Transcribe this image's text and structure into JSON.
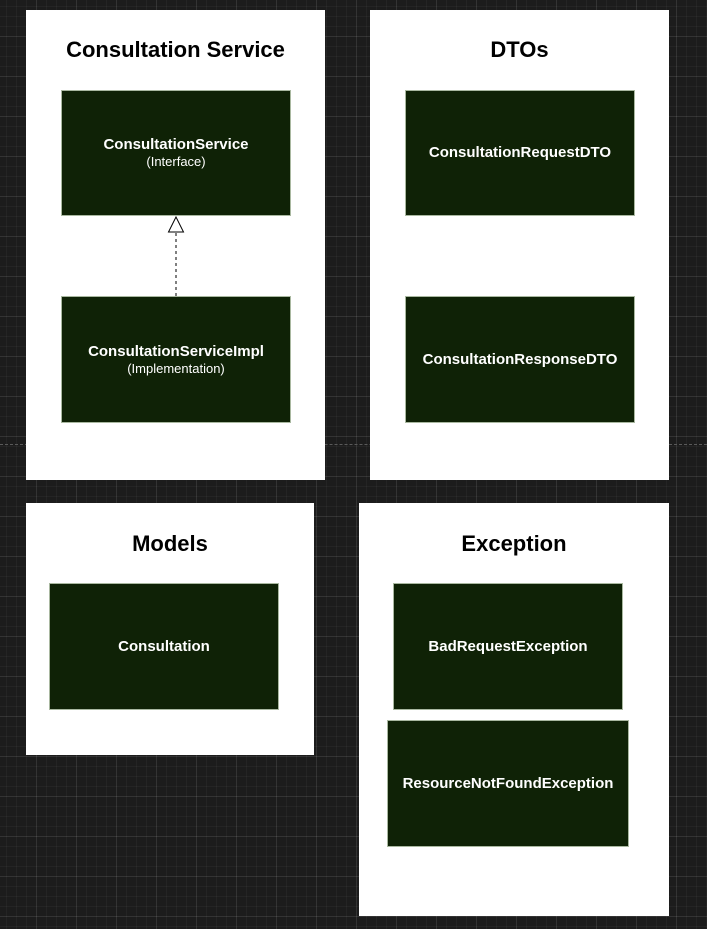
{
  "colors": {
    "canvas": "#1c1c1c",
    "panel": "#ffffff",
    "class_fill": "#0f2206",
    "class_border": "#a9b8a0",
    "class_text": "#ffffff",
    "relation_line": "#000000"
  },
  "panels": {
    "consultation_service": {
      "title": "Consultation Service",
      "interface": {
        "name": "ConsultationService",
        "stereotype": "(Interface)"
      },
      "implementation": {
        "name": "ConsultationServiceImpl",
        "stereotype": "(Implementation)"
      },
      "relation": "realization"
    },
    "dtos": {
      "title": "DTOs",
      "request": {
        "name": "ConsultationRequestDTO"
      },
      "response": {
        "name": "ConsultationResponseDTO"
      }
    },
    "models": {
      "title": "Models",
      "consultation": {
        "name": "Consultation"
      }
    },
    "exception": {
      "title": "Exception",
      "bad_request": {
        "name": "BadRequestException"
      },
      "not_found": {
        "name": "ResourceNotFoundException"
      }
    }
  }
}
